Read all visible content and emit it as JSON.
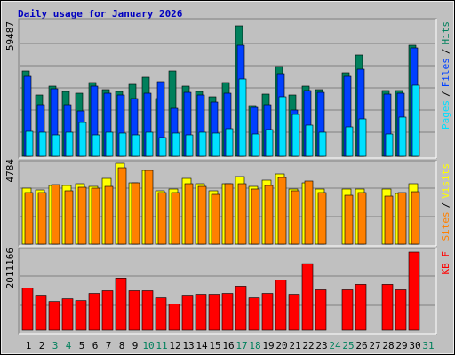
{
  "chart_data": [
    {
      "type": "bar",
      "title": "Daily usage for January 2026",
      "categories": [
        "1",
        "2",
        "3",
        "4",
        "5",
        "6",
        "7",
        "8",
        "9",
        "10",
        "11",
        "12",
        "13",
        "14",
        "15",
        "16",
        "17",
        "18",
        "19",
        "20",
        "21",
        "22",
        "23",
        "24",
        "25",
        "26",
        "27",
        "28",
        "29",
        "30",
        "31"
      ],
      "category_colors": [
        "#000000",
        "#000000",
        "#00805c",
        "#00805c",
        "#000000",
        "#000000",
        "#000000",
        "#000000",
        "#000000",
        "#00805c",
        "#00805c",
        "#000000",
        "#000000",
        "#000000",
        "#000000",
        "#000000",
        "#00805c",
        "#00805c",
        "#000000",
        "#000000",
        "#000000",
        "#000000",
        "#000000",
        "#00805c",
        "#00805c",
        "#000000",
        "#000000",
        "#000000",
        "#000000",
        "#000000",
        "#00805c"
      ],
      "legend_separator": "/",
      "ylim": [
        0,
        59487
      ],
      "yticks": [
        59487
      ],
      "series": [
        {
          "name": "Hits",
          "color": "#00805c",
          "values": [
            38850,
            27924,
            31971,
            29543,
            28733,
            33590,
            30353,
            29543,
            32781,
            36018,
            26306,
            38850,
            31971,
            29543,
            27115,
            33590,
            59487,
            23068,
            28329,
            40875,
            27924,
            31971,
            30353,
            0,
            38042,
            46136,
            0,
            29948,
            29948,
            50588,
            0
          ]
        },
        {
          "name": "Files",
          "color": "#0040ff",
          "values": [
            36423,
            23473,
            30757,
            23473,
            20640,
            31971,
            28733,
            27924,
            26306,
            28733,
            33994,
            21854,
            29138,
            27924,
            24687,
            28733,
            50588,
            22258,
            23473,
            37637,
            21044,
            29948,
            29138,
            0,
            36423,
            39660,
            0,
            28329,
            28733,
            49373,
            0
          ]
        },
        {
          "name": "Pages",
          "color": "#00e0ff",
          "values": [
            11332,
            10927,
            9713,
            10927,
            15379,
            9713,
            10927,
            10522,
            9713,
            10927,
            8499,
            10522,
            9713,
            10927,
            10522,
            12546,
            35209,
            10118,
            12141,
            27115,
            19021,
            14165,
            10927,
            0,
            13355,
            16997,
            0,
            10118,
            17807,
            32376,
            0
          ]
        }
      ]
    },
    {
      "type": "bar",
      "legend_separator": "/",
      "ylim": [
        0,
        4784
      ],
      "yticks": [
        4784
      ],
      "series": [
        {
          "name": "Visits",
          "color": "#ffff00",
          "values": [
            3312,
            3207,
            3470,
            3470,
            3575,
            3417,
            3890,
            4784,
            3627,
            4363,
            3155,
            3260,
            3890,
            3575,
            3155,
            3575,
            3996,
            3417,
            3785,
            4153,
            3260,
            3627,
            3260,
            0,
            3260,
            3260,
            0,
            3260,
            2997,
            3575,
            0
          ]
        },
        {
          "name": "Sites",
          "color": "#ff8000",
          "values": [
            3049,
            3049,
            3522,
            3155,
            3365,
            3312,
            3417,
            4521,
            3627,
            4363,
            3049,
            3049,
            3575,
            3417,
            2944,
            3575,
            3575,
            3260,
            3470,
            3943,
            3155,
            3733,
            3049,
            0,
            2891,
            3049,
            0,
            2839,
            3049,
            3101,
            0
          ]
        }
      ]
    },
    {
      "type": "bar",
      "ylim": [
        0,
        2011166
      ],
      "yticks": [
        2011166
      ],
      "series": [
        {
          "name": "KB F",
          "color": "#ff0000",
          "values": [
            1086500,
            901560,
            739740,
            809100,
            762860,
            947800,
            1017150,
            1340790,
            1017150,
            1017150,
            832210,
            670390,
            901560,
            924680,
            924680,
            947800,
            1132730,
            832210,
            947800,
            1294550,
            924680,
            1710660,
            1040260,
            0,
            1040260,
            1178960,
            0,
            1178960,
            1040260,
            2011166,
            0
          ]
        }
      ]
    }
  ]
}
